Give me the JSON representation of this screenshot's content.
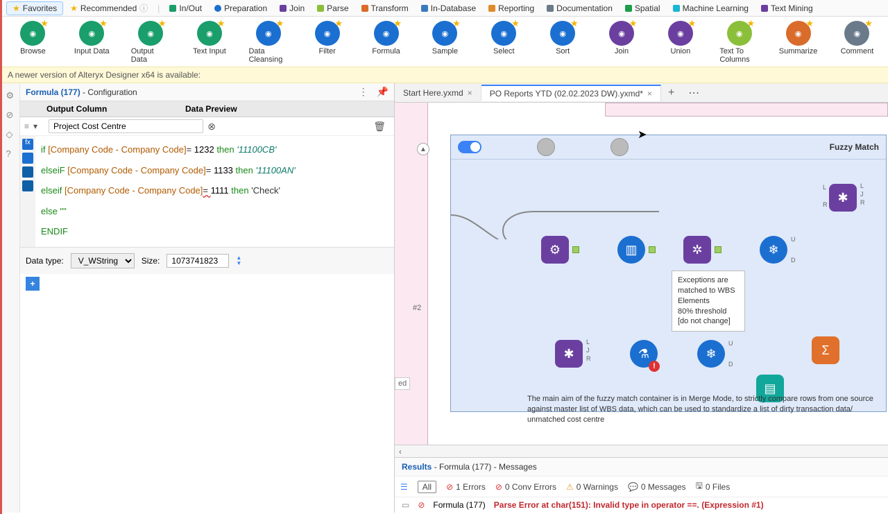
{
  "tabs": {
    "favorites": "Favorites",
    "recommended": "Recommended",
    "inout": "In/Out",
    "preparation": "Preparation",
    "join": "Join",
    "parse": "Parse",
    "transform": "Transform",
    "indatabase": "In-Database",
    "reporting": "Reporting",
    "documentation": "Documentation",
    "spatial": "Spatial",
    "ml": "Machine Learning",
    "textmining": "Text Mining"
  },
  "tab_colors": {
    "inout": "#1a9e6b",
    "preparation": "#1b6fd0",
    "join": "#6b3fa0",
    "parse": "#8bbf3a",
    "transform": "#d96b2b",
    "indatabase": "#3a7bbf",
    "reporting": "#e08a2a",
    "documentation": "#6a7a8a",
    "spatial": "#1a9e4a",
    "ml": "#1bb5d6",
    "textmining": "#6b3fa0"
  },
  "tools": [
    {
      "name": "Browse",
      "color": "#1a9e6b"
    },
    {
      "name": "Input Data",
      "color": "#1a9e6b"
    },
    {
      "name": "Output Data",
      "color": "#1a9e6b"
    },
    {
      "name": "Text Input",
      "color": "#1a9e6b"
    },
    {
      "name": "Data Cleansing",
      "color": "#1b6fd0"
    },
    {
      "name": "Filter",
      "color": "#1b6fd0"
    },
    {
      "name": "Formula",
      "color": "#1b6fd0"
    },
    {
      "name": "Sample",
      "color": "#1b6fd0"
    },
    {
      "name": "Select",
      "color": "#1b6fd0"
    },
    {
      "name": "Sort",
      "color": "#1b6fd0"
    },
    {
      "name": "Join",
      "color": "#6b3fa0"
    },
    {
      "name": "Union",
      "color": "#6b3fa0"
    },
    {
      "name": "Text To Columns",
      "color": "#8bbf3a"
    },
    {
      "name": "Summarize",
      "color": "#d96b2b"
    },
    {
      "name": "Comment",
      "color": "#6a7a8a"
    }
  ],
  "banner": "A newer version of Alteryx Designer x64 is available:",
  "config": {
    "title_tool": "Formula (177)",
    "title_suffix": " - Configuration",
    "col_output": "Output Column",
    "col_preview": "Data Preview",
    "field_name": "Project Cost Centre",
    "code_lines": {
      "l1a": "if ",
      "l1b": "[Company Code - Company Code]",
      "l1c": "= ",
      "l1d": "1232",
      "l1e": " then ",
      "l1f": "'11100CB'",
      "l2a": "elseiF ",
      "l2b": "[Company Code - Company Code]",
      "l2c": "= ",
      "l2d": "1133",
      "l2e": " then ",
      "l2f": "'11100AN'",
      "l3a": "elseif ",
      "l3b": "[Company Code - Company Code]",
      "l3c": "= ",
      "l3d": "1111",
      "l3e": " then ",
      "l3f": "'Check'",
      "l4": "else \"\"",
      "l5": "ENDIF"
    },
    "datatype_label": "Data type:",
    "datatype_value": "V_WString",
    "size_label": "Size:",
    "size_value": "1073741823"
  },
  "doc_tabs": {
    "t1": "Start Here.yxmd",
    "t2": "PO Reports YTD (02.02.2023 DW).yxmd*"
  },
  "container": {
    "title": "Fuzzy Match",
    "note_l1": "Exceptions are",
    "note_l2": "matched to WBS",
    "note_l3": "Elements",
    "note_l4": "80% threshold",
    "note_l5": "[do not change]",
    "desc": "The main aim of the fuzzy match container is in Merge Mode, to strictly compare rows from one source against master list of WBS data, which can be used to standardize a list of dirty transaction data/ unmatched cost centre",
    "hash2": "#2",
    "ed": "ed"
  },
  "results": {
    "header_a": "Results",
    "header_b": " - Formula (177) - Messages",
    "all": "All",
    "errors": "1 Errors",
    "conv": "0 Conv Errors",
    "warn": "0 Warnings",
    "msgs": "0 Messages",
    "files": "0 Files",
    "row_tool": "Formula (177)",
    "row_err": "Parse Error at char(151): Invalid type in operator ==. (Expression #1)"
  },
  "colors": {
    "purple": "#6b3fa0",
    "blue": "#1b6fd0",
    "orange": "#e0702b",
    "teal": "#1a9e6b",
    "bookTeal": "#12a79b",
    "darkblue": "#0f5fa6"
  }
}
